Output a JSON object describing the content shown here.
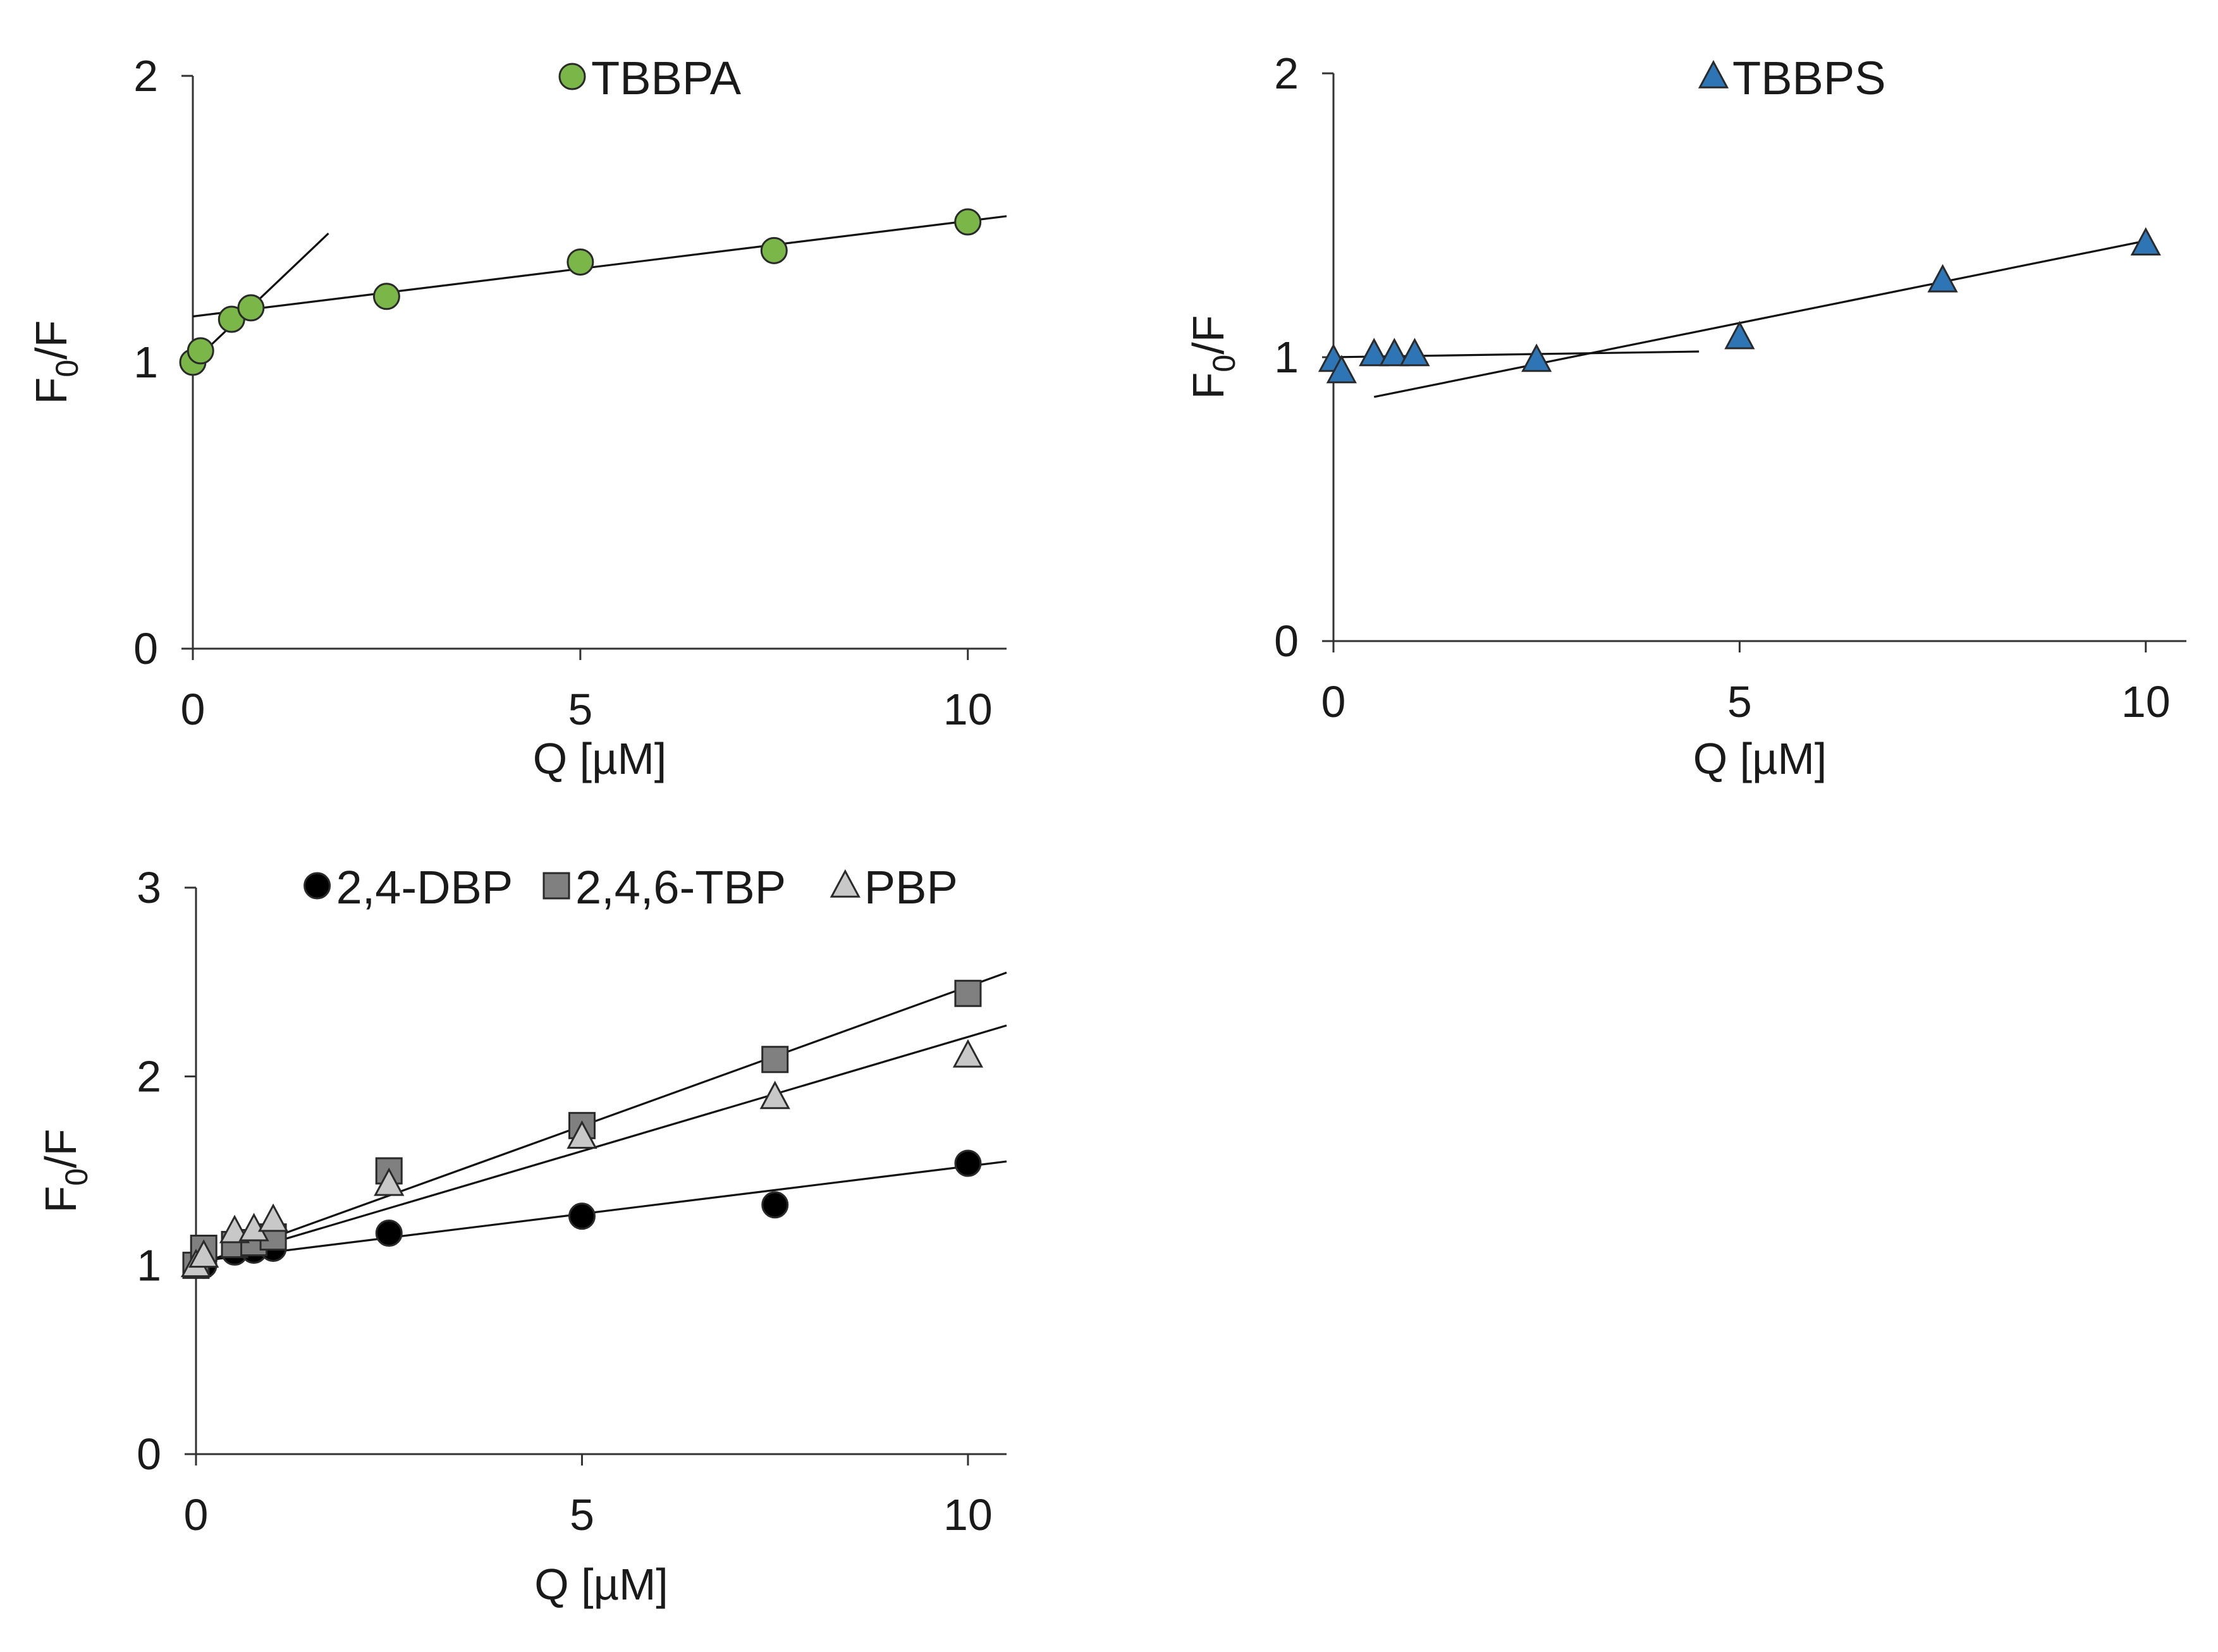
{
  "chart_data": [
    {
      "type": "scatter",
      "title": "",
      "xlabel": "Q [µM]",
      "ylabel": "F0/F",
      "xlim": [
        0,
        10.5
      ],
      "ylim": [
        0,
        2
      ],
      "xticks": [
        0,
        5,
        10
      ],
      "yticks": [
        0,
        1,
        2
      ],
      "legend_position": "top-center",
      "series": [
        {
          "name": "TBBPA",
          "marker": "circle",
          "color": "#7ab648",
          "x": [
            0,
            0.1,
            0.5,
            0.75,
            2.5,
            5,
            7.5,
            10
          ],
          "y": [
            1.0,
            1.04,
            1.15,
            1.19,
            1.23,
            1.35,
            1.39,
            1.49
          ]
        }
      ],
      "fit_lines": [
        {
          "x": [
            0,
            1.75
          ],
          "y": [
            1.0,
            1.45
          ]
        },
        {
          "x": [
            0,
            10.5
          ],
          "y": [
            1.16,
            1.51
          ]
        }
      ]
    },
    {
      "type": "scatter",
      "title": "",
      "xlabel": "Q [µM]",
      "ylabel": "F0/F",
      "xlim": [
        0,
        10.5
      ],
      "ylim": [
        0,
        2
      ],
      "xticks": [
        0,
        5,
        10
      ],
      "yticks": [
        0,
        1,
        2
      ],
      "legend_position": "top-center",
      "series": [
        {
          "name": "TBBPS",
          "marker": "triangle",
          "color": "#2e75b6",
          "x": [
            0,
            0.1,
            0.5,
            0.75,
            1.0,
            2.5,
            5,
            7.5,
            10
          ],
          "y": [
            0.99,
            0.95,
            1.01,
            1.01,
            1.01,
            0.99,
            1.07,
            1.27,
            1.4
          ]
        }
      ],
      "fit_lines": [
        {
          "x": [
            0,
            4.5
          ],
          "y": [
            1.0,
            1.02
          ]
        },
        {
          "x": [
            0.5,
            10
          ],
          "y": [
            0.86,
            1.41
          ]
        }
      ]
    },
    {
      "type": "scatter",
      "title": "",
      "xlabel": "Q [µM]",
      "ylabel": "F0/F",
      "xlim": [
        0,
        10.5
      ],
      "ylim": [
        0,
        3
      ],
      "xticks": [
        0,
        5,
        10
      ],
      "yticks": [
        0,
        1,
        2,
        3
      ],
      "legend_position": "top-center",
      "series": [
        {
          "name": "2,4-DBP",
          "marker": "circle",
          "color": "#000000",
          "x": [
            0,
            0.1,
            0.5,
            0.75,
            1.0,
            2.5,
            5,
            7.5,
            10
          ],
          "y": [
            1.0,
            1.0,
            1.07,
            1.08,
            1.09,
            1.17,
            1.26,
            1.32,
            1.54
          ]
        },
        {
          "name": "2,4,6-TBP",
          "marker": "square",
          "color": "#808080",
          "x": [
            0,
            0.1,
            0.5,
            0.75,
            1.0,
            2.5,
            5,
            7.5,
            10
          ],
          "y": [
            1.0,
            1.09,
            1.11,
            1.12,
            1.15,
            1.5,
            1.74,
            2.09,
            2.44
          ]
        },
        {
          "name": "PBP",
          "marker": "triangle",
          "color": "#c8c8c8",
          "x": [
            0,
            0.1,
            0.5,
            0.75,
            1.0,
            2.5,
            5,
            7.5,
            10
          ],
          "y": [
            1.0,
            1.05,
            1.18,
            1.19,
            1.24,
            1.43,
            1.68,
            1.89,
            2.11
          ]
        }
      ],
      "fit_lines": [
        {
          "x": [
            0,
            10.5
          ],
          "y": [
            1.02,
            1.55
          ]
        },
        {
          "x": [
            0,
            10.5
          ],
          "y": [
            1.0,
            2.55
          ]
        },
        {
          "x": [
            0,
            10.5
          ],
          "y": [
            1.0,
            2.27
          ]
        }
      ]
    }
  ]
}
